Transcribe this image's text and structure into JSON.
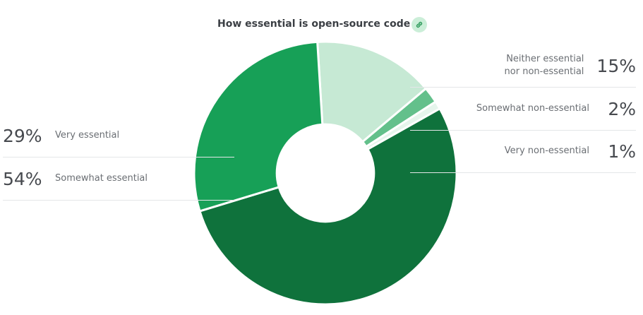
{
  "chart_data": {
    "type": "pie",
    "title": "How essential is open-source code",
    "categories": [
      "Neither essential nor non-essential",
      "Somewhat non-essential",
      "Very non-essential",
      "Somewhat essential",
      "Very essential"
    ],
    "values": [
      15,
      2,
      1,
      54,
      29
    ],
    "value_labels": [
      "15%",
      "2%",
      "1%",
      "54%",
      "29%"
    ],
    "colors": [
      "#c6e9d4",
      "#63c08b",
      "#e6f5ec",
      "#0f723c",
      "#17a057"
    ],
    "inner_radius_ratio": 0.37
  },
  "legend": {
    "left": [
      {
        "pct": "29%",
        "label": "Very essential"
      },
      {
        "pct": "54%",
        "label": "Somewhat essential"
      }
    ],
    "right": [
      {
        "pct": "15%",
        "label_line1": "Neither essential",
        "label_line2": "nor non-essential"
      },
      {
        "pct": "2%",
        "label_line1": "Somewhat non-essential",
        "label_line2": ""
      },
      {
        "pct": "1%",
        "label_line1": "Very non-essential",
        "label_line2": ""
      }
    ]
  },
  "icons": {
    "link": "link-icon"
  }
}
